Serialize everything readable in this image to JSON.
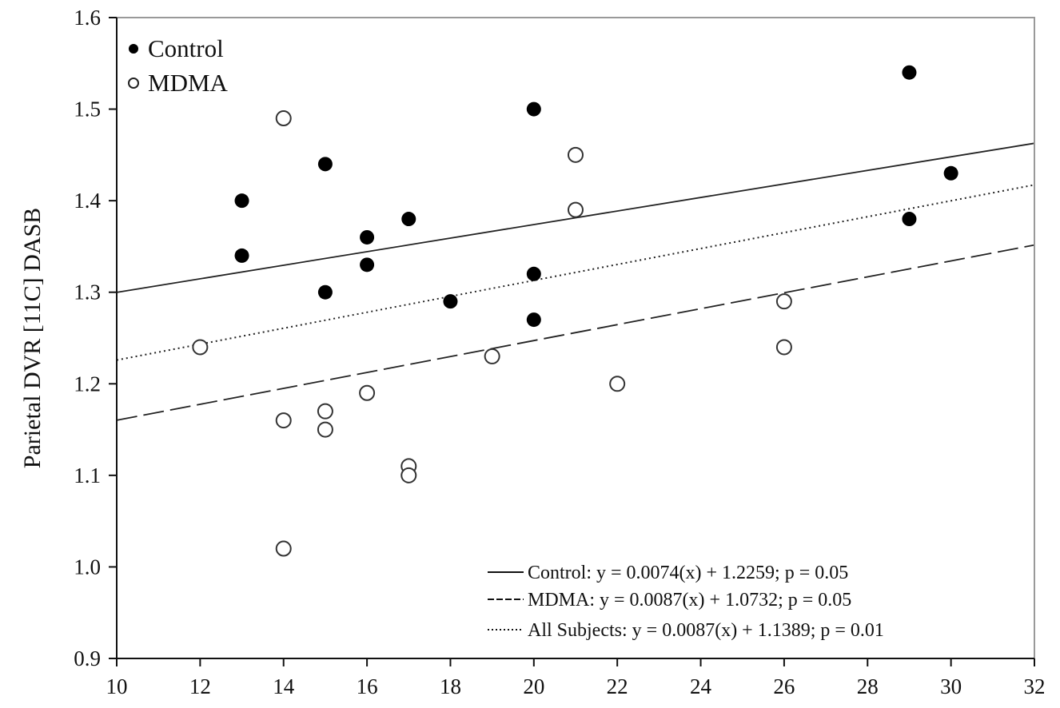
{
  "chart_data": {
    "type": "scatter",
    "title": "",
    "xlabel": "",
    "ylabel": "Parietal DVR [11C] DASB",
    "xlim": [
      10,
      32
    ],
    "ylim": [
      0.9,
      1.6
    ],
    "x_ticks": [
      "10",
      "12",
      "14",
      "16",
      "18",
      "20",
      "22",
      "24",
      "26",
      "28",
      "30",
      "32"
    ],
    "y_ticks": [
      "0.9",
      "1.0",
      "1.1",
      "1.2",
      "1.3",
      "1.4",
      "1.5",
      "1.6"
    ],
    "grid": false,
    "marker_legend": {
      "placement": "top-left",
      "entries": [
        {
          "label": "Control",
          "marker": "filled-circle"
        },
        {
          "label": "MDMA",
          "marker": "open-circle"
        }
      ]
    },
    "line_legend": {
      "placement": "bottom-right",
      "entries": [
        {
          "label": "Control: y = 0.0074(x) + 1.2259; p = 0.05",
          "style": "solid"
        },
        {
          "label": "MDMA: y = 0.0087(x) + 1.0732; p = 0.05",
          "style": "dashed"
        },
        {
          "label": "All Subjects: y = 0.0087(x) + 1.1389; p = 0.01",
          "style": "dotted"
        }
      ]
    },
    "series": [
      {
        "name": "Control",
        "marker": "filled",
        "color": "#000000",
        "points": [
          [
            13,
            1.4
          ],
          [
            13,
            1.34
          ],
          [
            15,
            1.44
          ],
          [
            15,
            1.3
          ],
          [
            16,
            1.36
          ],
          [
            16,
            1.33
          ],
          [
            17,
            1.38
          ],
          [
            18,
            1.29
          ],
          [
            20,
            1.5
          ],
          [
            20,
            1.32
          ],
          [
            20,
            1.27
          ],
          [
            29,
            1.54
          ],
          [
            29,
            1.38
          ],
          [
            30,
            1.43
          ]
        ]
      },
      {
        "name": "MDMA",
        "marker": "open",
        "color": "#000000",
        "points": [
          [
            12,
            1.24
          ],
          [
            14,
            1.49
          ],
          [
            14,
            1.16
          ],
          [
            14,
            1.02
          ],
          [
            15,
            1.17
          ],
          [
            15,
            1.15
          ],
          [
            16,
            1.19
          ],
          [
            17,
            1.11
          ],
          [
            17,
            1.1
          ],
          [
            19,
            1.23
          ],
          [
            21,
            1.45
          ],
          [
            21,
            1.39
          ],
          [
            22,
            1.2
          ],
          [
            26,
            1.29
          ],
          [
            26,
            1.24
          ]
        ]
      }
    ],
    "fit_lines": [
      {
        "name": "Control",
        "style": "solid",
        "slope": 0.0074,
        "intercept": 1.2259
      },
      {
        "name": "MDMA",
        "style": "dashed",
        "slope": 0.0087,
        "intercept": 1.0732
      },
      {
        "name": "All Subjects",
        "style": "dotted",
        "slope": 0.0087,
        "intercept": 1.1389
      }
    ]
  }
}
